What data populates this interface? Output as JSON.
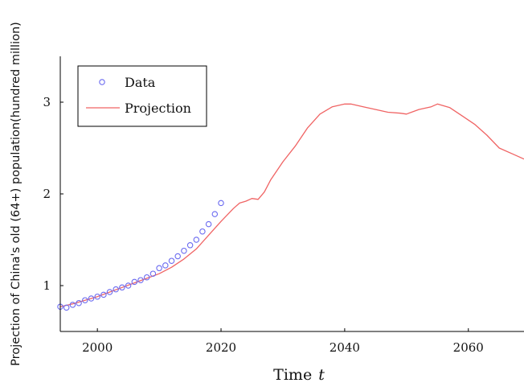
{
  "chart_data": {
    "type": "line",
    "xlabel": "Time",
    "xlabel_var": "t",
    "ylabel": "Projection of China's old (64+) population(hundred million)",
    "xlim": [
      1994,
      2069
    ],
    "ylim": [
      0.5,
      3.5
    ],
    "x_ticks": [
      2000,
      2020,
      2040,
      2060
    ],
    "y_ticks": [
      1,
      2,
      3
    ],
    "x_tick_labels": [
      "2000",
      "2020",
      "2040",
      "2060"
    ],
    "y_tick_labels": [
      "1",
      "2",
      "3"
    ],
    "legend_position": "top-left",
    "grid": false,
    "series": [
      {
        "name": "Data",
        "kind": "scatter",
        "marker": "circle-open",
        "color": "#6a6af0",
        "x": [
          1994,
          1995,
          1996,
          1997,
          1998,
          1999,
          2000,
          2001,
          2002,
          2003,
          2004,
          2005,
          2006,
          2007,
          2008,
          2009,
          2010,
          2011,
          2012,
          2013,
          2014,
          2015,
          2016,
          2017,
          2018,
          2019,
          2020
        ],
        "y": [
          0.77,
          0.76,
          0.79,
          0.81,
          0.84,
          0.86,
          0.88,
          0.9,
          0.93,
          0.96,
          0.98,
          1.0,
          1.04,
          1.06,
          1.09,
          1.13,
          1.19,
          1.22,
          1.27,
          1.32,
          1.38,
          1.44,
          1.5,
          1.59,
          1.67,
          1.78,
          1.9
        ]
      },
      {
        "name": "Projection",
        "kind": "line",
        "color": "#f06464",
        "x": [
          1994,
          1996,
          1998,
          2000,
          2002,
          2004,
          2006,
          2008,
          2010,
          2012,
          2014,
          2016,
          2018,
          2020,
          2022,
          2023,
          2024,
          2025,
          2026,
          2027,
          2028,
          2030,
          2032,
          2034,
          2036,
          2038,
          2040,
          2041,
          2043,
          2045,
          2047,
          2049,
          2050,
          2052,
          2054,
          2055,
          2057,
          2059,
          2061,
          2063,
          2065,
          2067,
          2069
        ],
        "y": [
          0.77,
          0.8,
          0.84,
          0.88,
          0.93,
          0.98,
          1.03,
          1.08,
          1.13,
          1.2,
          1.29,
          1.4,
          1.55,
          1.7,
          1.84,
          1.9,
          1.92,
          1.95,
          1.94,
          2.02,
          2.15,
          2.35,
          2.52,
          2.72,
          2.87,
          2.95,
          2.98,
          2.98,
          2.95,
          2.92,
          2.89,
          2.88,
          2.87,
          2.92,
          2.95,
          2.98,
          2.94,
          2.85,
          2.76,
          2.64,
          2.5,
          2.44,
          2.38
        ]
      }
    ]
  }
}
